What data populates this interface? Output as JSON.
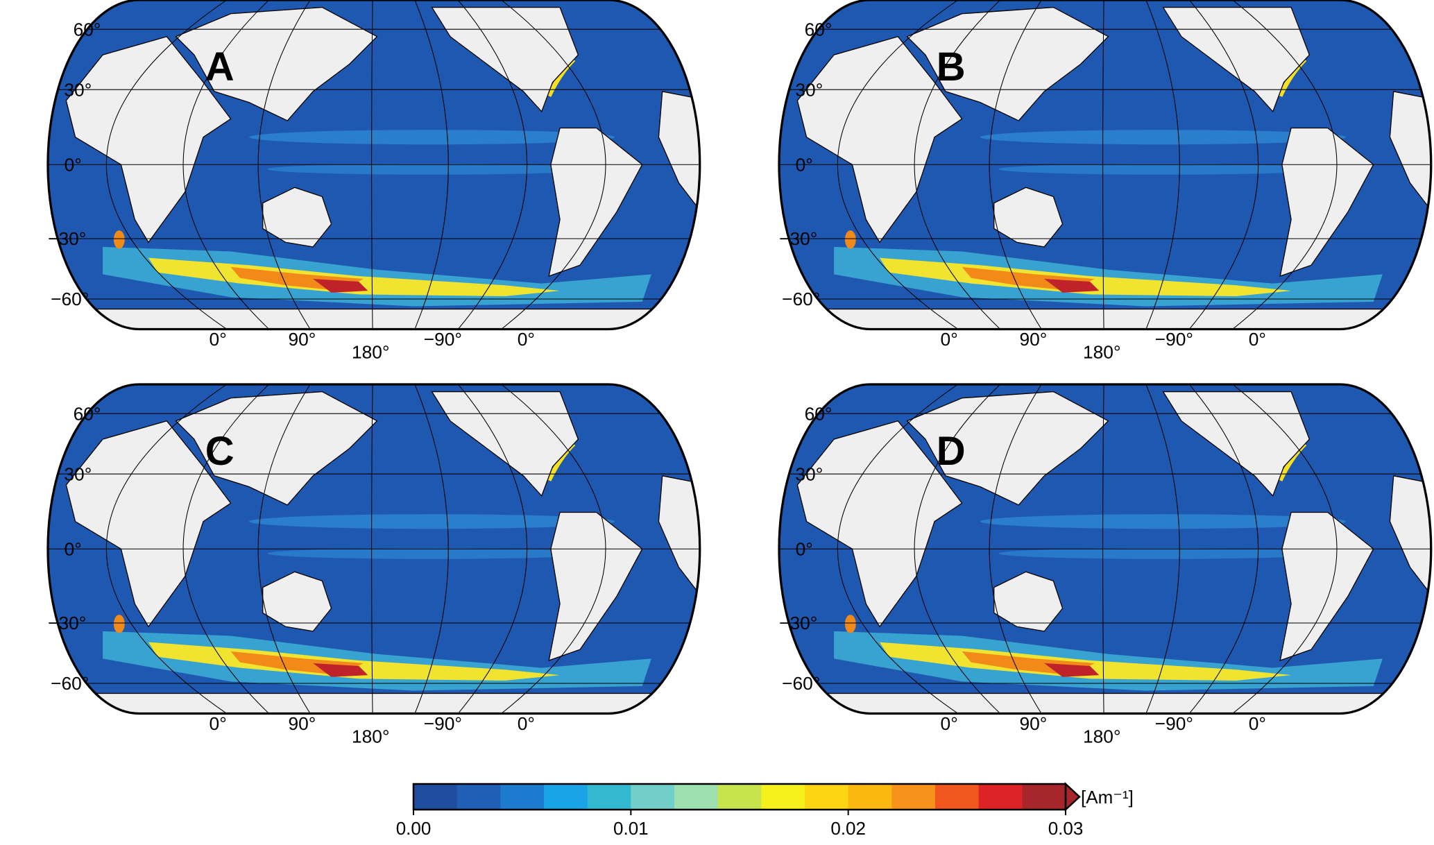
{
  "panels": [
    {
      "label": "A"
    },
    {
      "label": "B"
    },
    {
      "label": "C"
    },
    {
      "label": "D"
    }
  ],
  "graticule": {
    "lat_labels": [
      "60°",
      "30°",
      "0°",
      "−30°",
      "−60°"
    ],
    "lon_labels": [
      "0°",
      "90°",
      "180°",
      "−90°",
      "0°"
    ]
  },
  "colorbar": {
    "lim": [
      0,
      0.03
    ],
    "ticks": [
      {
        "value": 0,
        "label": "0.00"
      },
      0.01,
      0.02,
      0.03
    ],
    "colors": [
      "#1f4e9f",
      "#1f5fb5",
      "#1c7bcf",
      "#1aa3e6",
      "#33b9cf",
      "#72cec8",
      "#9edfb0",
      "#c8e44c",
      "#f6f01c",
      "#fdd513",
      "#fbb80f",
      "#f7931a",
      "#f2561f",
      "#dd2326",
      "#a6262b"
    ],
    "unit": "[Am⁻¹]"
  }
}
